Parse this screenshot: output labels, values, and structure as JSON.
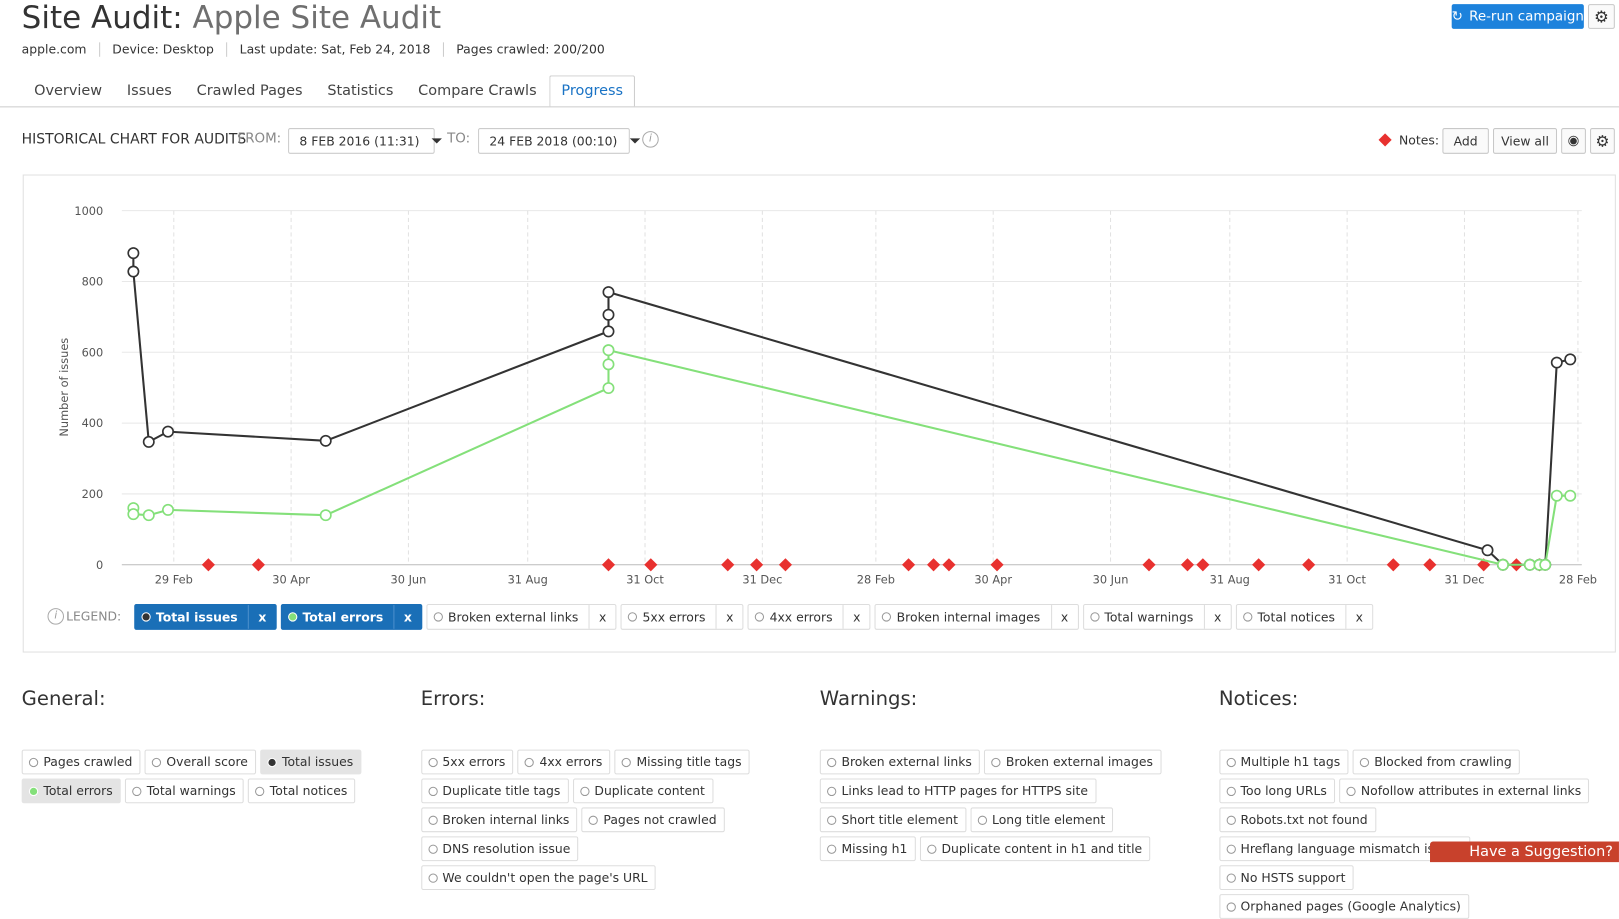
{
  "header": {
    "title": "Site Audit:",
    "project": "Apple Site Audit",
    "meta": [
      "apple.com",
      "Device: Desktop",
      "Last update: Sat, Feb 24, 2018",
      "Pages crawled: 200/200"
    ],
    "rerun": "Re-run campaign"
  },
  "tabs": [
    "Overview",
    "Issues",
    "Crawled Pages",
    "Statistics",
    "Compare Crawls",
    "Progress"
  ],
  "active_tab": 5,
  "toolbar": {
    "title": "HISTORICAL CHART FOR AUDITS",
    "from_label": "FROM:",
    "from": "8 FEB 2016 (11:31)",
    "to_label": "TO:",
    "to": "24 FEB 2018 (00:10)",
    "notes_label": "Notes:",
    "add": "Add",
    "view_all": "View all"
  },
  "chart_data": {
    "type": "line",
    "y_label": "Number of issues",
    "xlim": [
      32,
      791
    ],
    "xticks": [
      {
        "value": 59,
        "label": "29 Feb"
      },
      {
        "value": 120,
        "label": "30 Apr"
      },
      {
        "value": 181,
        "label": "30 Jun"
      },
      {
        "value": 243,
        "label": "31 Aug"
      },
      {
        "value": 304,
        "label": "31 Oct"
      },
      {
        "value": 365,
        "label": "31 Dec"
      },
      {
        "value": 424,
        "label": "28 Feb"
      },
      {
        "value": 485,
        "label": "30 Apr"
      },
      {
        "value": 546,
        "label": "30 Jun"
      },
      {
        "value": 608,
        "label": "31 Aug"
      },
      {
        "value": 669,
        "label": "31 Oct"
      },
      {
        "value": 730,
        "label": "31 Dec"
      },
      {
        "value": 789,
        "label": "28 Feb"
      }
    ],
    "ylim": [
      0,
      1000
    ],
    "yticks": [
      0,
      200,
      400,
      600,
      800,
      1000
    ],
    "grid": true,
    "series": [
      {
        "name": "Total issues",
        "color": "#333333",
        "x": [
          38,
          38,
          46,
          56,
          138,
          285,
          285,
          285,
          742,
          750,
          764,
          769,
          772,
          778,
          785
        ],
        "values": [
          880,
          828,
          347,
          376,
          350,
          659,
          706,
          770,
          41,
          0,
          0,
          0,
          0,
          571,
          580
        ]
      },
      {
        "name": "Total errors",
        "color": "#84e07a",
        "x": [
          38,
          38,
          46,
          56,
          138,
          285,
          285,
          285,
          750,
          764,
          769,
          772,
          778,
          785
        ],
        "values": [
          160,
          143,
          140,
          155,
          140,
          499,
          566,
          606,
          0,
          0,
          0,
          0,
          195,
          195
        ]
      }
    ],
    "notes": {
      "color": "#e8312f",
      "x": [
        77,
        103,
        285,
        307,
        347,
        362,
        377,
        441,
        454,
        462,
        487,
        566,
        586,
        594,
        623,
        649,
        693,
        712,
        740,
        757,
        769
      ]
    }
  },
  "legend": {
    "label": "LEGEND:",
    "remove": "x",
    "inactive": [
      "Broken external links",
      "5xx errors",
      "4xx errors",
      "Broken internal images",
      "Total warnings",
      "Total notices"
    ]
  },
  "panels": [
    {
      "title": "General:",
      "items": [
        {
          "label": "Pages crawled"
        },
        {
          "label": "Overall score"
        },
        {
          "label": "Total issues",
          "dot": "#333333"
        },
        {
          "label": "Total errors",
          "dot": "#84e07a"
        },
        {
          "label": "Total warnings"
        },
        {
          "label": "Total notices"
        }
      ]
    },
    {
      "title": "Errors:",
      "items": [
        {
          "label": "5xx errors"
        },
        {
          "label": "4xx errors"
        },
        {
          "label": "Missing title tags"
        },
        {
          "label": "Duplicate title tags"
        },
        {
          "label": "Duplicate content"
        },
        {
          "label": "Broken internal links"
        },
        {
          "label": "Pages not crawled"
        },
        {
          "label": "DNS resolution issue"
        },
        {
          "label": "We couldn't open the page's URL"
        }
      ]
    },
    {
      "title": "Warnings:",
      "items": [
        {
          "label": "Broken external links"
        },
        {
          "label": "Broken external images"
        },
        {
          "label": "Links lead to HTTP pages for HTTPS site"
        },
        {
          "label": "Short title element"
        },
        {
          "label": "Long title element"
        },
        {
          "label": "Missing h1"
        },
        {
          "label": "Duplicate content in h1 and title"
        }
      ]
    },
    {
      "title": "Notices:",
      "items": [
        {
          "label": "Multiple h1 tags"
        },
        {
          "label": "Blocked from crawling"
        },
        {
          "label": "Too long URLs"
        },
        {
          "label": "Nofollow attributes in external links"
        },
        {
          "label": "Robots.txt not found"
        },
        {
          "label": "Hreflang language mismatch issues"
        },
        {
          "label": "No HSTS support"
        },
        {
          "label": "Orphaned pages (Google Analytics)"
        }
      ]
    }
  ],
  "suggestion": "Have a Suggestion?"
}
